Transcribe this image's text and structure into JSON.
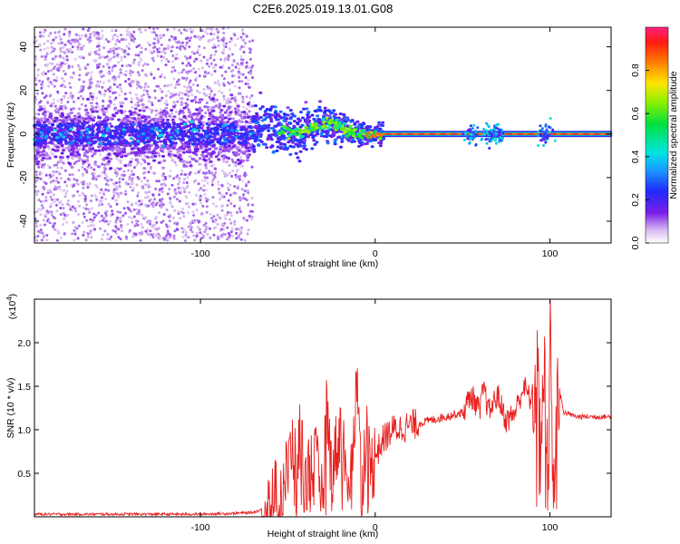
{
  "title": "C2E6.2025.019.13.01.G08",
  "colors": {
    "snr_line": "#e8201e",
    "axis": "#000000",
    "background": "#ffffff"
  },
  "chart_data": [
    {
      "type": "heatmap",
      "xlabel": "Height of straight line (km)",
      "ylabel": "Frequency (Hz)",
      "xlim": [
        -195,
        135
      ],
      "ylim": [
        -50,
        49
      ],
      "xticks": [
        -100,
        0,
        100
      ],
      "xtick_labels": [
        "-100",
        "0",
        "100"
      ],
      "yticks": [
        -40,
        -20,
        0,
        20,
        40
      ],
      "ytick_labels": [
        "-40",
        "-20",
        "0",
        "20",
        "40"
      ],
      "colorbar": {
        "label": "Normalized spectral amplitude",
        "range": [
          0,
          1
        ],
        "ticks": [
          0.0,
          0.2,
          0.4,
          0.6,
          0.8
        ],
        "tick_labels": [
          "0.0",
          "0.2",
          "0.4",
          "0.6",
          "0.8"
        ],
        "colormap": "rainbow (white-violet-blue-cyan-green-yellow-red-magenta)"
      },
      "grid": false,
      "features": {
        "noisy_region_x": [
          -195,
          -70
        ],
        "transition_region_x": [
          -70,
          5
        ],
        "steady_line_x": [
          5,
          135
        ],
        "line_frequency_hz": 0,
        "disturbance_centers_x": [
          55,
          65,
          70,
          97
        ]
      }
    },
    {
      "type": "line",
      "xlabel": "Height of straight line (km)",
      "ylabel": "SNR (10 * v/v)",
      "y_scale_label": "(x10",
      "y_scale_exponent": "4",
      "xlim": [
        -195,
        135
      ],
      "ylim": [
        0,
        2.5
      ],
      "xticks": [
        -100,
        0,
        100
      ],
      "xtick_labels": [
        "-100",
        "0",
        "100"
      ],
      "yticks": [
        0.5,
        1.0,
        1.5,
        2.0
      ],
      "ytick_labels": [
        "0.5",
        "1.0",
        "1.5",
        "2.0"
      ],
      "grid": false,
      "series": [
        {
          "x": [
            -195,
            -150,
            -100,
            -80,
            -70,
            -62,
            -55,
            -50,
            -47,
            -45,
            -43,
            -40,
            -35,
            -30,
            -28,
            -25,
            -20,
            -15,
            -12,
            -10,
            -8,
            -5,
            -3,
            0,
            5,
            10,
            20,
            30,
            40,
            50,
            55,
            60,
            62,
            65,
            70,
            75,
            80,
            85,
            90,
            93,
            95,
            97,
            99,
            100,
            102,
            104,
            108,
            115,
            125,
            135
          ],
          "y": [
            0.03,
            0.03,
            0.03,
            0.04,
            0.05,
            0.1,
            0.3,
            0.5,
            0.9,
            0.3,
            1.0,
            0.4,
            0.7,
            0.2,
            1.3,
            0.5,
            1.0,
            0.4,
            1.1,
            1.6,
            0.3,
            1.0,
            0.5,
            0.7,
            0.9,
            1.0,
            1.05,
            1.1,
            1.15,
            1.2,
            1.4,
            1.2,
            1.5,
            1.2,
            1.4,
            1.1,
            1.2,
            1.5,
            1.3,
            1.7,
            0.9,
            1.9,
            0.1,
            2.45,
            0.1,
            1.6,
            1.2,
            1.15,
            1.15,
            1.15
          ]
        }
      ]
    }
  ]
}
